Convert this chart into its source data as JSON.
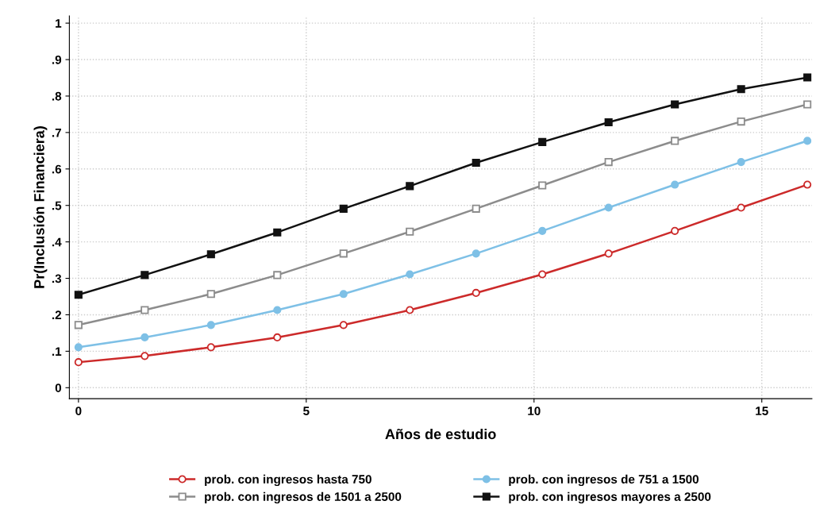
{
  "chart_data": {
    "type": "line",
    "xlabel": "Años de estudio",
    "ylabel": "Pr(Inclusión Financiera)",
    "x": [
      0,
      1.4545,
      2.9091,
      4.3636,
      5.8182,
      7.2727,
      8.7273,
      10.1818,
      11.6364,
      13.0909,
      14.5455,
      16
    ],
    "series": [
      {
        "name": "prob. con ingresos hasta 750",
        "color": "#cc2a2a",
        "marker": "circle",
        "values": [
          0.07,
          0.087,
          0.111,
          0.138,
          0.172,
          0.213,
          0.26,
          0.311,
          0.368,
          0.43,
          0.494,
          0.557
        ]
      },
      {
        "name": "prob. con ingresos de 751 a 1500",
        "color": "#7ec0e6",
        "marker": "circle",
        "values": [
          0.111,
          0.138,
          0.172,
          0.213,
          0.257,
          0.311,
          0.368,
          0.43,
          0.494,
          0.557,
          0.619,
          0.677
        ]
      },
      {
        "name": "prob. con ingresos de 1501 a 2500",
        "color": "#8c8c8c",
        "marker": "square",
        "values": [
          0.172,
          0.213,
          0.257,
          0.309,
          0.368,
          0.428,
          0.491,
          0.555,
          0.619,
          0.677,
          0.73,
          0.777
        ]
      },
      {
        "name": "prob. con ingresos mayores a 2500",
        "color": "#111111",
        "marker": "square",
        "values": [
          0.255,
          0.309,
          0.366,
          0.426,
          0.491,
          0.553,
          0.617,
          0.674,
          0.728,
          0.777,
          0.819,
          0.851
        ]
      }
    ],
    "xlim": [
      -0.2,
      16.1
    ],
    "ylim": [
      -0.03,
      1.02
    ],
    "xticks": [
      0,
      5,
      10,
      15
    ],
    "yticks": [
      0,
      {
        "value": 0.1,
        "label": ".1"
      },
      {
        "value": 0.2,
        "label": ".2"
      },
      {
        "value": 0.3,
        "label": ".3"
      },
      {
        "value": 0.4,
        "label": ".4"
      },
      {
        "value": 0.5,
        "label": ".5"
      },
      {
        "value": 0.6,
        "label": ".6"
      },
      {
        "value": 0.7,
        "label": ".7"
      },
      {
        "value": 0.8,
        "label": ".8"
      },
      {
        "value": 0.9,
        "label": ".9"
      },
      1
    ],
    "grid": true,
    "legend": "bottom",
    "line_style": "solid"
  }
}
